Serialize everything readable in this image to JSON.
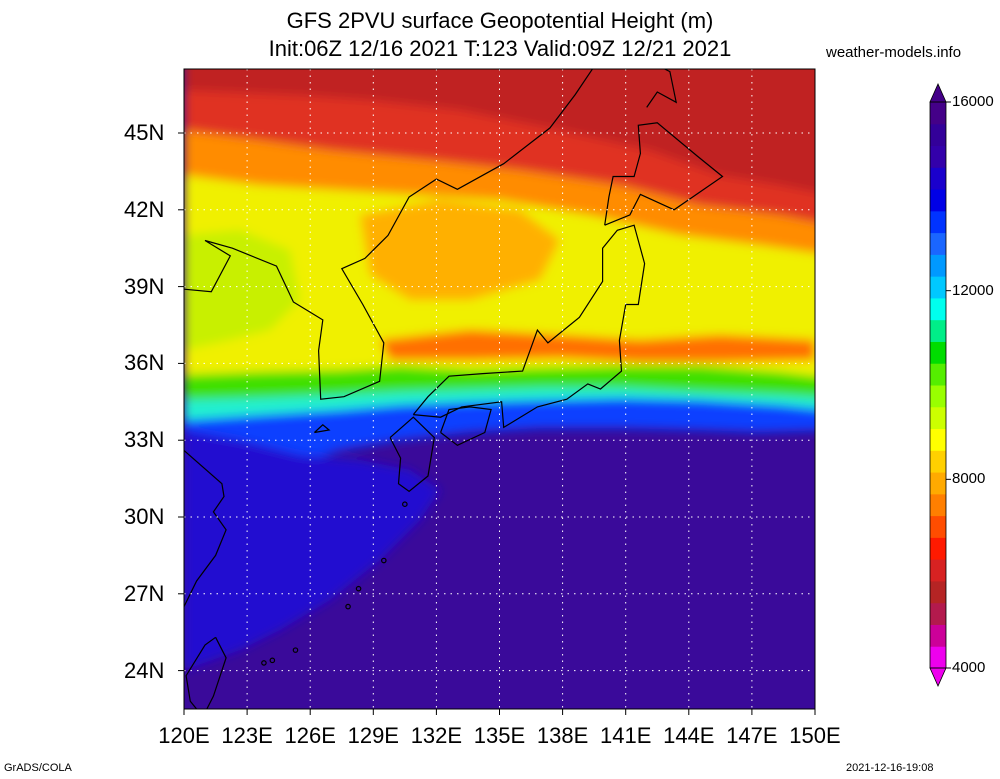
{
  "title": {
    "line1": "GFS 2PVU surface Geopotential Height (m)",
    "line2": "Init:06Z 12/16 2021 T:123 Valid:09Z 12/21 2021"
  },
  "credit": "weather-models.info",
  "footer": {
    "left": "GrADS/COLA",
    "right": "2021-12-16-19:08"
  },
  "map": {
    "lon_range": [
      120,
      150
    ],
    "lat_range": [
      22.5,
      47.5
    ],
    "lat_ticks": [
      {
        "value": 45,
        "label": "45N"
      },
      {
        "value": 42,
        "label": "42N"
      },
      {
        "value": 39,
        "label": "39N"
      },
      {
        "value": 36,
        "label": "36N"
      },
      {
        "value": 33,
        "label": "33N"
      },
      {
        "value": 30,
        "label": "30N"
      },
      {
        "value": 27,
        "label": "27N"
      },
      {
        "value": 24,
        "label": "24N"
      }
    ],
    "lon_ticks": [
      {
        "value": 120,
        "label": "120E"
      },
      {
        "value": 123,
        "label": "123E"
      },
      {
        "value": 126,
        "label": "126E"
      },
      {
        "value": 129,
        "label": "129E"
      },
      {
        "value": 132,
        "label": "132E"
      },
      {
        "value": 135,
        "label": "135E"
      },
      {
        "value": 138,
        "label": "138E"
      },
      {
        "value": 141,
        "label": "141E"
      },
      {
        "value": 144,
        "label": "144E"
      },
      {
        "value": 147,
        "label": "147E"
      },
      {
        "value": 150,
        "label": "150E"
      }
    ],
    "grid": true
  },
  "colorbar": {
    "range": [
      4000,
      16000
    ],
    "labels": [
      {
        "value": 16000,
        "label": "16000"
      },
      {
        "value": 12000,
        "label": "12000"
      },
      {
        "value": 8000,
        "label": "8000"
      },
      {
        "value": 4000,
        "label": "4000"
      }
    ],
    "colors": [
      "#ee00ee",
      "#cc0099",
      "#b31a4d",
      "#b52424",
      "#d72222",
      "#ff1a00",
      "#ff4d00",
      "#ff7f00",
      "#ffaa00",
      "#ffd000",
      "#ffff00",
      "#ccff00",
      "#99ff00",
      "#55ee00",
      "#00dd00",
      "#00ee88",
      "#00ffee",
      "#00c8ff",
      "#0099ff",
      "#1a66ff",
      "#0033ff",
      "#0000e6",
      "#1a00cc",
      "#3300aa",
      "#330099",
      "#440088"
    ]
  },
  "colors": {
    "red_top": "#e03020",
    "dark_red": "#c02020",
    "orange": "#ff8c00",
    "light_orange": "#ffb000",
    "yellow": "#f0f000",
    "yellow_green": "#c8f000",
    "green": "#40e000",
    "cyan": "#20f0d0",
    "blue": "#1040ff",
    "dark_blue": "#2010d0",
    "indigo": "#3a0a9a",
    "coastline": "#000000"
  }
}
